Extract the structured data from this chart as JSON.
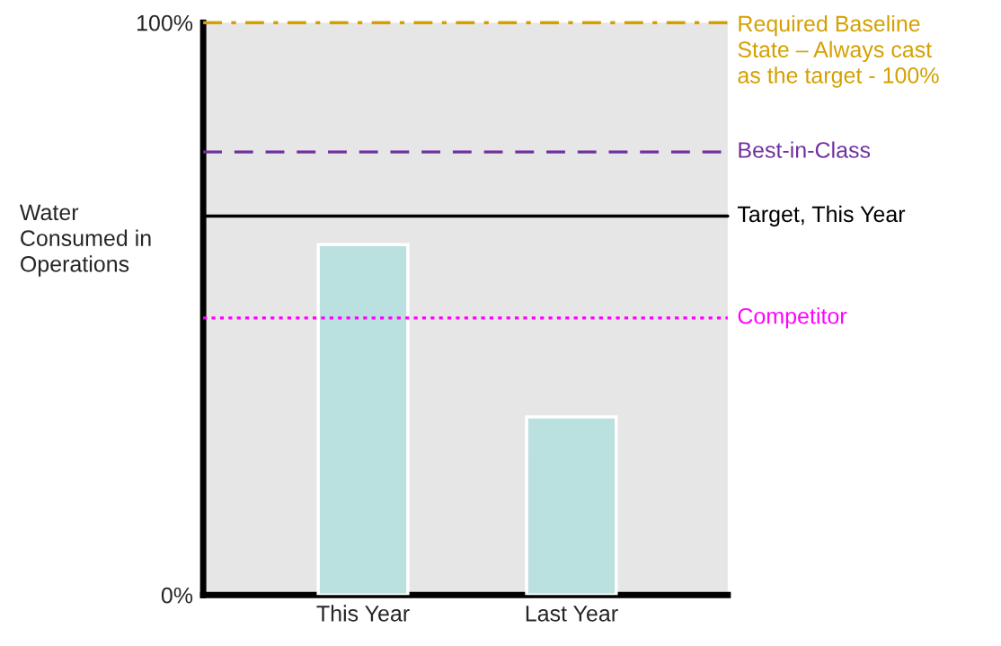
{
  "chart_data": {
    "type": "bar",
    "ylabel": "Water\nConsumed in\nOperations",
    "categories": [
      "This Year",
      "Last Year"
    ],
    "values": [
      61.2,
      31.1
    ],
    "color": "#bbe0e0",
    "ylim": [
      0,
      100
    ],
    "yticks": [
      {
        "value": 0,
        "label": "0%"
      },
      {
        "value": 100,
        "label": "100%"
      }
    ],
    "grid": false,
    "legend": false,
    "ref_lines": [
      {
        "axis": "y",
        "value": 100,
        "label": "Required Baseline\nState – Always cast\nas the target - 100%",
        "color": "#d4a000",
        "line_style": "dashdot"
      },
      {
        "axis": "y",
        "value": 77.4,
        "label": "Best-in-Class",
        "color": "#7030a0",
        "line_style": "dashed"
      },
      {
        "axis": "y",
        "value": 66.2,
        "label": "Target, This Year",
        "color": "#000000",
        "line_style": "solid"
      },
      {
        "axis": "y",
        "value": 48.4,
        "label": "Competitor",
        "color": "#ff00ff",
        "line_style": "dotted"
      }
    ]
  }
}
